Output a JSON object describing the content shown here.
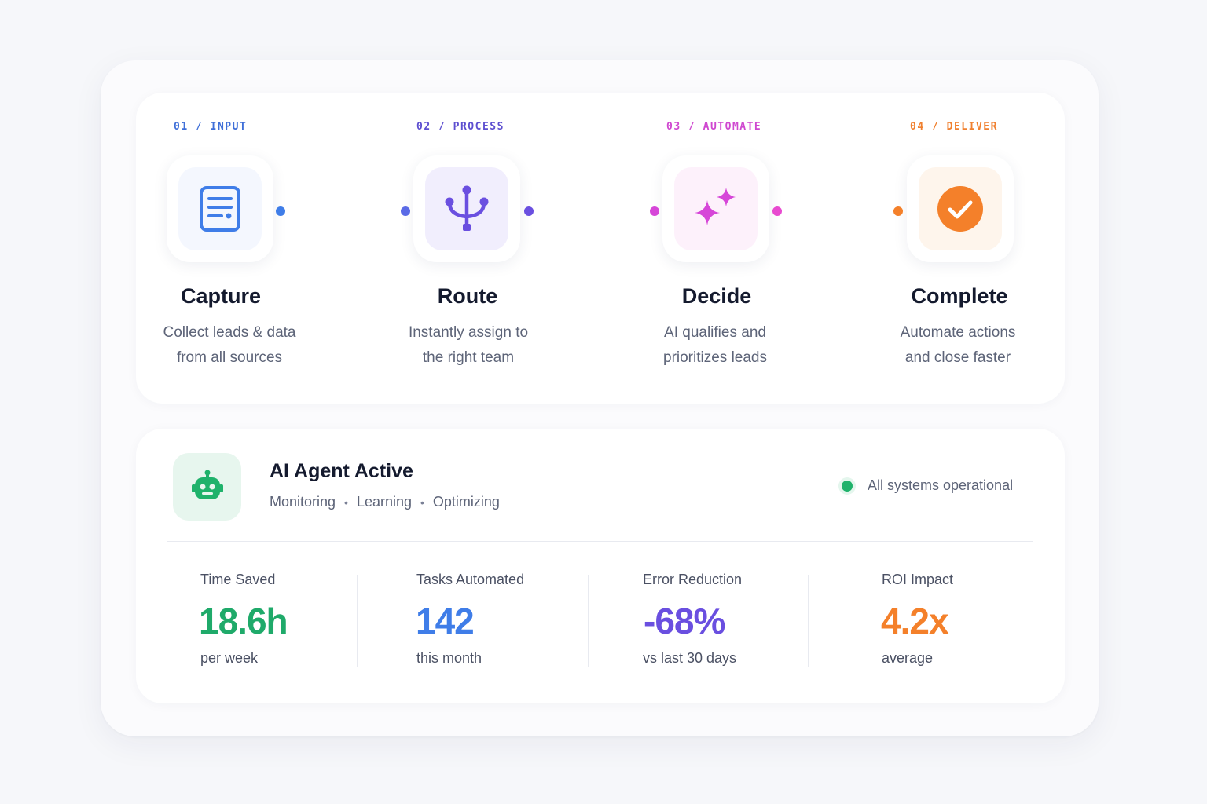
{
  "steps": [
    {
      "label": "01 / INPUT",
      "title": "Capture",
      "desc_line1": "Collect leads & data",
      "desc_line2": "from all sources",
      "icon": "document-list-icon",
      "color": "#3f7de8"
    },
    {
      "label": "02 / PROCESS",
      "title": "Route",
      "desc_line1": "Instantly assign to",
      "desc_line2": "the right team",
      "icon": "branch-icon",
      "color": "#6a4fe0"
    },
    {
      "label": "03 / AUTOMATE",
      "title": "Decide",
      "desc_line1": "AI qualifies and",
      "desc_line2": "prioritizes leads",
      "icon": "sparkles-icon",
      "color": "#d646d8"
    },
    {
      "label": "04 / DELIVER",
      "title": "Complete",
      "desc_line1": "Automate actions",
      "desc_line2": "and close faster",
      "icon": "check-circle-icon",
      "color": "#f4802a"
    }
  ],
  "agent": {
    "title": "AI Agent Active",
    "activities": [
      "Monitoring",
      "Learning",
      "Optimizing"
    ],
    "status": "All systems operational",
    "icon": "robot-icon",
    "status_color": "#1fb26b"
  },
  "metrics": [
    {
      "label": "Time Saved",
      "value": "18.6h",
      "sub": "per week",
      "color": "#1faa6a"
    },
    {
      "label": "Tasks Automated",
      "value": "142",
      "sub": "this month",
      "color": "#3f7de8"
    },
    {
      "label": "Error Reduction",
      "value": "-68%",
      "sub": "vs last 30 days",
      "color": "#6a4fe0"
    },
    {
      "label": "ROI Impact",
      "value": "4.2x",
      "sub": "average",
      "color": "#f4802a"
    }
  ]
}
